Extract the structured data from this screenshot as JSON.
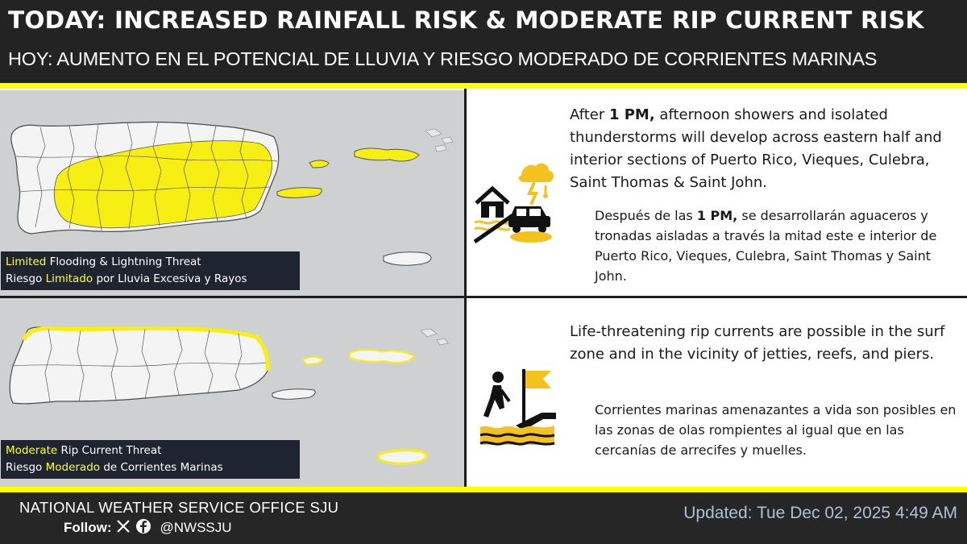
{
  "header": {
    "title": "TODAY: INCREASED RAINFALL RISK & MODERATE RIP CURRENT RISK",
    "subtitle": "HOY: AUMENTO EN EL POTENCIAL DE LLUVIA Y RIESGO MODERADO DE CORRIENTES MARINAS"
  },
  "rainfall": {
    "legend": {
      "en_highlight": "Limited",
      "en_rest": " Flooding & Lightning Threat",
      "es_prefix": "Riesgo ",
      "es_highlight": "Limitado",
      "es_rest": " por Lluvia Excesiva y Rayos"
    },
    "en": {
      "prefix": "After ",
      "time": "1 PM,",
      "text": " afternoon showers and isolated thunderstorms will develop across eastern half and interior sections of Puerto Rico, Vieques, Culebra, Saint Thomas & Saint John."
    },
    "es": {
      "prefix": "Después de las ",
      "time": "1 PM,",
      "text": " se desarrollarán aguaceros y tronadas aisladas a través la mitad este e interior de Puerto Rico, Vieques, Culebra, Saint Thomas y Saint John."
    },
    "icon": "flooded-house-car-storm-icon"
  },
  "rip_current": {
    "legend": {
      "en_highlight": "Moderate",
      "en_rest": " Rip Current Threat",
      "es_prefix": "Riesgo ",
      "es_highlight": "Moderado",
      "es_rest": " de Corrientes Marinas"
    },
    "en": "Life-threatening rip currents are possible in the surf zone and in the vicinity of jetties, reefs, and piers.",
    "es": "Corrientes marinas amenazantes a vida son posibles en las zonas de olas rompientes al igual que  en las cercanías de arrecifes y muelles.",
    "icon": "rip-current-flag-person-icon"
  },
  "footer": {
    "office": "NATIONAL WEATHER SERVICE OFFICE SJU",
    "follow_label": "Follow:",
    "social_icons": [
      "x-icon",
      "facebook-icon"
    ],
    "handle": "@NWSSJU",
    "updated": "Updated: Tue Dec 02, 2025 4:49 AM"
  },
  "colors": {
    "header_bg": "#232323",
    "accent_yellow": "#ffff00",
    "map_bg": "#cfd0d2",
    "land": "#f4f4f4",
    "threat_yellow": "#f7ef13",
    "legend_bg": "#1f2530",
    "updated_text": "#a9c3d6"
  }
}
